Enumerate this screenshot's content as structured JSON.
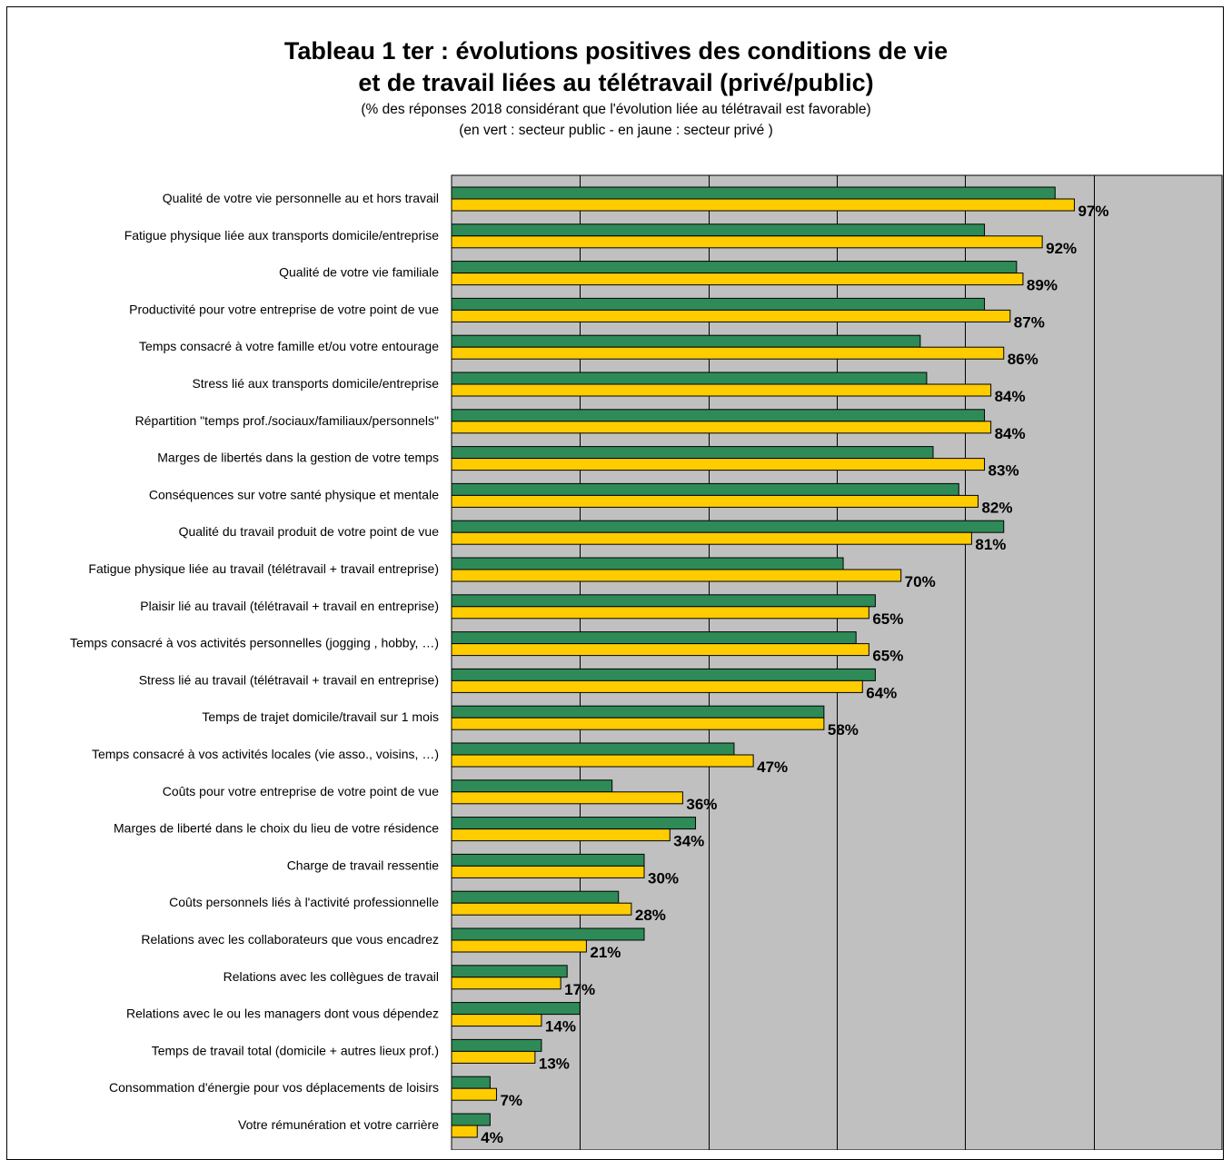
{
  "title_line1": "Tableau 1 ter : évolutions positives des conditions de vie",
  "title_line2": "et de travail liées au télétravail (privé/public)",
  "subtitle1": "(% des réponses 2018 considérant que l'évolution liée au télétravail est favorable)",
  "subtitle2": "(en vert : secteur public - en jaune : secteur privé )",
  "colors": {
    "public": "#2e8b57",
    "prive": "#ffcc00",
    "plot_bg": "#c0c0c0"
  },
  "chart_data": {
    "type": "bar",
    "orientation": "horizontal",
    "title": "Tableau 1 ter : évolutions positives des conditions de vie et de travail liées au télétravail (privé/public)",
    "xlim": [
      0,
      120
    ],
    "grid": true,
    "categories": [
      "Qualité de votre vie personnelle au et hors travail",
      "Fatigue physique liée aux transports domicile/entreprise",
      "Qualité de votre vie familiale",
      "Productivité pour votre entreprise de votre point de vue",
      "Temps consacré à votre famille et/ou votre entourage",
      "Stress lié aux transports domicile/entreprise",
      "Répartition \"temps prof./sociaux/familiaux/personnels\"",
      "Marges de libertés dans la gestion de votre temps",
      "Conséquences sur votre santé physique et mentale",
      "Qualité du travail produit de votre point de vue",
      "Fatigue physique liée au travail (télétravail + travail entreprise)",
      "Plaisir lié au travail (télétravail + travail en entreprise)",
      "Temps consacré à vos activités personnelles (jogging , hobby, …)",
      "Stress lié au travail (télétravail + travail en entreprise)",
      "Temps de trajet domicile/travail sur 1 mois",
      "Temps consacré à vos activités locales (vie asso., voisins, …)",
      "Coûts pour votre entreprise de votre point de vue",
      "Marges de liberté dans le choix du lieu de votre résidence",
      "Charge de travail ressentie",
      "Coûts personnels liés à l'activité professionnelle",
      "Relations avec les collaborateurs que vous encadrez",
      "Relations avec les collègues de travail",
      "Relations avec le ou les managers dont vous dépendez",
      "Temps de travail total (domicile + autres lieux prof.)",
      "Consommation d'énergie pour vos déplacements de loisirs",
      "Votre rémunération et votre carrière"
    ],
    "series": [
      {
        "key": "public",
        "values": [
          94,
          83,
          88,
          83,
          73,
          74,
          83,
          75,
          79,
          86,
          61,
          66,
          63,
          66,
          58,
          44,
          25,
          38,
          30,
          26,
          30,
          18,
          20,
          14,
          6,
          6
        ]
      },
      {
        "key": "prive",
        "values": [
          97,
          92,
          89,
          87,
          86,
          84,
          84,
          83,
          82,
          81,
          70,
          65,
          65,
          64,
          58,
          47,
          36,
          34,
          30,
          28,
          21,
          17,
          14,
          13,
          7,
          4
        ],
        "data_labels": [
          "97%",
          "92%",
          "89%",
          "87%",
          "86%",
          "84%",
          "84%",
          "83%",
          "82%",
          "81%",
          "70%",
          "65%",
          "65%",
          "64%",
          "58%",
          "47%",
          "36%",
          "34%",
          "30%",
          "28%",
          "21%",
          "17%",
          "14%",
          "13%",
          "7%",
          "4%"
        ]
      }
    ]
  }
}
